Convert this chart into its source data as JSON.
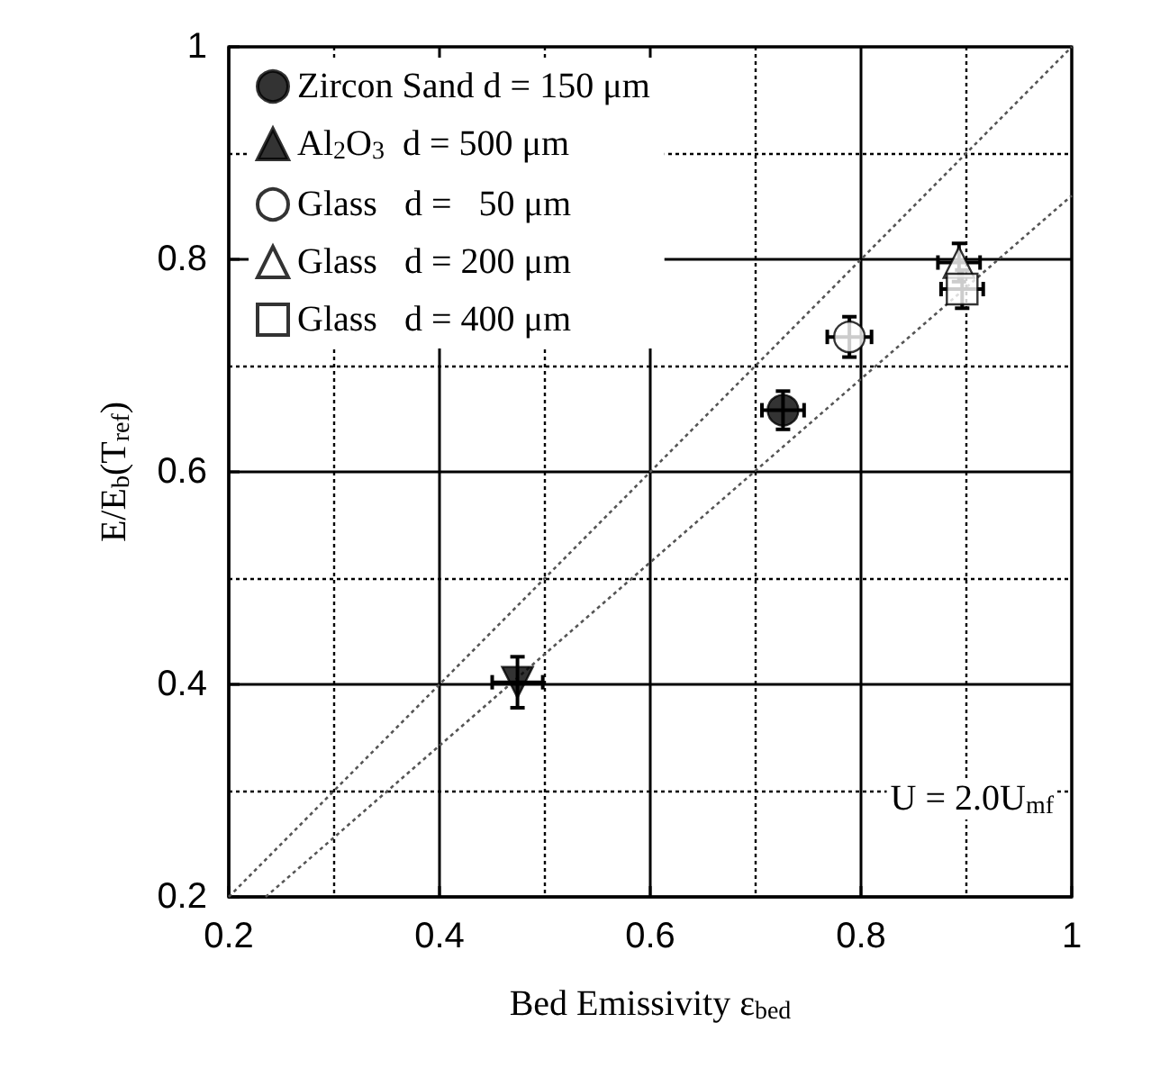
{
  "chart_data": {
    "type": "scatter",
    "xlabel": "Bed Emissivity ε$_{bed}$",
    "ylabel": "E/E$_{b}$(T$_{ref}$)",
    "xlim": [
      0.2,
      1
    ],
    "ylim": [
      0.2,
      1
    ],
    "xticks": [
      0.2,
      0.4,
      0.6,
      0.8,
      1
    ],
    "yticks": [
      0.2,
      0.4,
      0.6,
      0.8,
      1
    ],
    "grid": true,
    "legend": "top left",
    "annotations": [
      "U = 2.0U$_{mf}$"
    ],
    "series": [
      {
        "name": "Zircon Sand d = 150 μm",
        "color": "#000000",
        "marker": "circle",
        "x": [
          0.726
        ],
        "values": [
          0.658
        ],
        "xerrors": [
          0.02
        ],
        "errors": [
          0.018
        ]
      },
      {
        "name": "Al$_{2}$O$_{3}$  d = 500 μm",
        "color": "#000000",
        "marker": "triangle-down",
        "x": [
          0.474
        ],
        "values": [
          0.402
        ],
        "xerrors": [
          0.024
        ],
        "errors": [
          0.024
        ]
      },
      {
        "name": "Glass   d =   50 μm",
        "color": "#ffffff",
        "marker": "circle",
        "x": [
          0.789
        ],
        "values": [
          0.727
        ],
        "xerrors": [
          0.021
        ],
        "errors": [
          0.019
        ]
      },
      {
        "name": "Glass   d = 200 μm",
        "color": "#ffffff",
        "marker": "triangle",
        "x": [
          0.893
        ],
        "values": [
          0.797
        ],
        "xerrors": [
          0.02
        ],
        "errors": [
          0.018
        ]
      },
      {
        "name": "Glass   d = 400 μm",
        "color": "#ffffff",
        "marker": "square",
        "x": [
          0.896
        ],
        "values": [
          0.772
        ],
        "xerrors": [
          0.02
        ],
        "errors": [
          0.018
        ]
      },
      {
        "type": "line",
        "color": "#555555",
        "line_style": "dotted",
        "x": [
          0.2,
          1
        ],
        "values": [
          0.2,
          1
        ]
      },
      {
        "type": "line",
        "color": "#555555",
        "line_style": "dotted",
        "x": [
          0.235,
          1
        ],
        "values": [
          0.2,
          0.86
        ]
      }
    ]
  }
}
